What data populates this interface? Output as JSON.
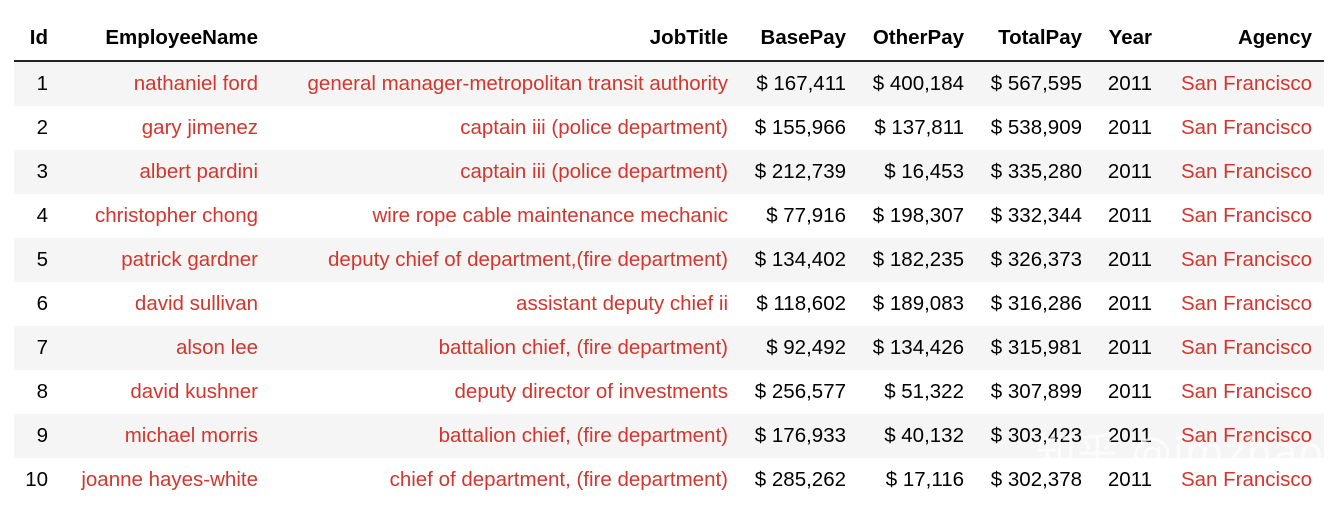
{
  "table": {
    "headers": [
      "Id",
      "EmployeeName",
      "JobTitle",
      "BasePay",
      "OtherPay",
      "TotalPay",
      "Year",
      "Agency"
    ],
    "rows": [
      [
        "1",
        "nathaniel ford",
        "general manager-metropolitan transit authority",
        "$ 167,411",
        "$ 400,184",
        "$ 567,595",
        "2011",
        "San Francisco"
      ],
      [
        "2",
        "gary jimenez",
        "captain iii (police department)",
        "$ 155,966",
        "$ 137,811",
        "$ 538,909",
        "2011",
        "San Francisco"
      ],
      [
        "3",
        "albert pardini",
        "captain iii (police department)",
        "$ 212,739",
        "$ 16,453",
        "$ 335,280",
        "2011",
        "San Francisco"
      ],
      [
        "4",
        "christopher chong",
        "wire rope cable maintenance mechanic",
        "$ 77,916",
        "$ 198,307",
        "$ 332,344",
        "2011",
        "San Francisco"
      ],
      [
        "5",
        "patrick gardner",
        "deputy chief of department,(fire department)",
        "$ 134,402",
        "$ 182,235",
        "$ 326,373",
        "2011",
        "San Francisco"
      ],
      [
        "6",
        "david sullivan",
        "assistant deputy chief ii",
        "$ 118,602",
        "$ 189,083",
        "$ 316,286",
        "2011",
        "San Francisco"
      ],
      [
        "7",
        "alson lee",
        "battalion chief, (fire department)",
        "$ 92,492",
        "$ 134,426",
        "$ 315,981",
        "2011",
        "San Francisco"
      ],
      [
        "8",
        "david kushner",
        "deputy director of investments",
        "$ 256,577",
        "$ 51,322",
        "$ 307,899",
        "2011",
        "San Francisco"
      ],
      [
        "9",
        "michael morris",
        "battalion chief, (fire department)",
        "$ 176,933",
        "$ 40,132",
        "$ 303,423",
        "2011",
        "San Francisco"
      ],
      [
        "10",
        "joanne hayes-white",
        "chief of department, (fire department)",
        "$ 285,262",
        "$ 17,116",
        "$ 302,378",
        "2011",
        "San Francisco"
      ]
    ]
  },
  "watermark": "知乎 @jmzhao",
  "colors": {
    "text_highlight": "#d1362f",
    "row_stripe": "#f5f5f5",
    "header_rule": "#222222"
  }
}
